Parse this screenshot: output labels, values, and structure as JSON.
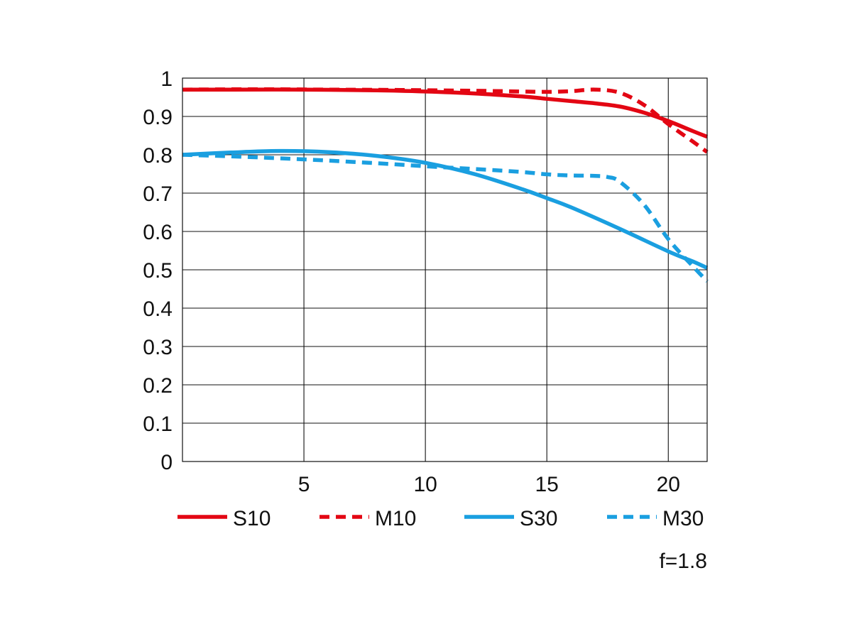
{
  "chart_data": {
    "type": "line",
    "xlim": [
      0,
      21.6
    ],
    "ylim": [
      0,
      1
    ],
    "x_ticks": [
      "5",
      "10",
      "15",
      "20"
    ],
    "y_ticks": [
      "0",
      "0.1",
      "0.2",
      "0.3",
      "0.4",
      "0.5",
      "0.6",
      "0.7",
      "0.8",
      "0.9",
      "1"
    ],
    "grid": true,
    "legend_position": "bottom",
    "note": "f=1.8",
    "colors": {
      "red": "#e30613",
      "blue": "#1a9fe0"
    },
    "series": [
      {
        "name": "S10",
        "color": "#e30613",
        "style": "solid",
        "x": [
          0,
          2,
          5,
          8,
          10,
          12,
          14,
          15,
          16,
          17,
          18,
          19,
          20,
          21,
          21.6
        ],
        "y": [
          0.97,
          0.97,
          0.97,
          0.968,
          0.965,
          0.96,
          0.952,
          0.946,
          0.94,
          0.934,
          0.926,
          0.91,
          0.888,
          0.862,
          0.847
        ]
      },
      {
        "name": "M10",
        "color": "#e30613",
        "style": "dashed",
        "x": [
          0,
          3,
          6,
          9,
          12,
          14,
          15,
          16,
          17,
          18,
          19,
          20,
          21,
          21.6
        ],
        "y": [
          0.97,
          0.971,
          0.97,
          0.969,
          0.967,
          0.965,
          0.964,
          0.966,
          0.97,
          0.962,
          0.93,
          0.88,
          0.835,
          0.807
        ]
      },
      {
        "name": "S30",
        "color": "#1a9fe0",
        "style": "solid",
        "x": [
          0,
          2,
          4,
          6,
          8,
          10,
          12,
          14,
          15,
          16,
          18,
          20,
          21,
          21.6
        ],
        "y": [
          0.8,
          0.806,
          0.81,
          0.807,
          0.797,
          0.779,
          0.75,
          0.71,
          0.687,
          0.663,
          0.607,
          0.548,
          0.522,
          0.505
        ]
      },
      {
        "name": "M30",
        "color": "#1a9fe0",
        "style": "dashed",
        "x": [
          0,
          2,
          5,
          8,
          10,
          12,
          14,
          15,
          16,
          17,
          17.5,
          18,
          19,
          20,
          21,
          21.6
        ],
        "y": [
          0.8,
          0.796,
          0.788,
          0.778,
          0.77,
          0.763,
          0.755,
          0.749,
          0.746,
          0.745,
          0.742,
          0.73,
          0.67,
          0.58,
          0.51,
          0.47
        ]
      }
    ]
  }
}
